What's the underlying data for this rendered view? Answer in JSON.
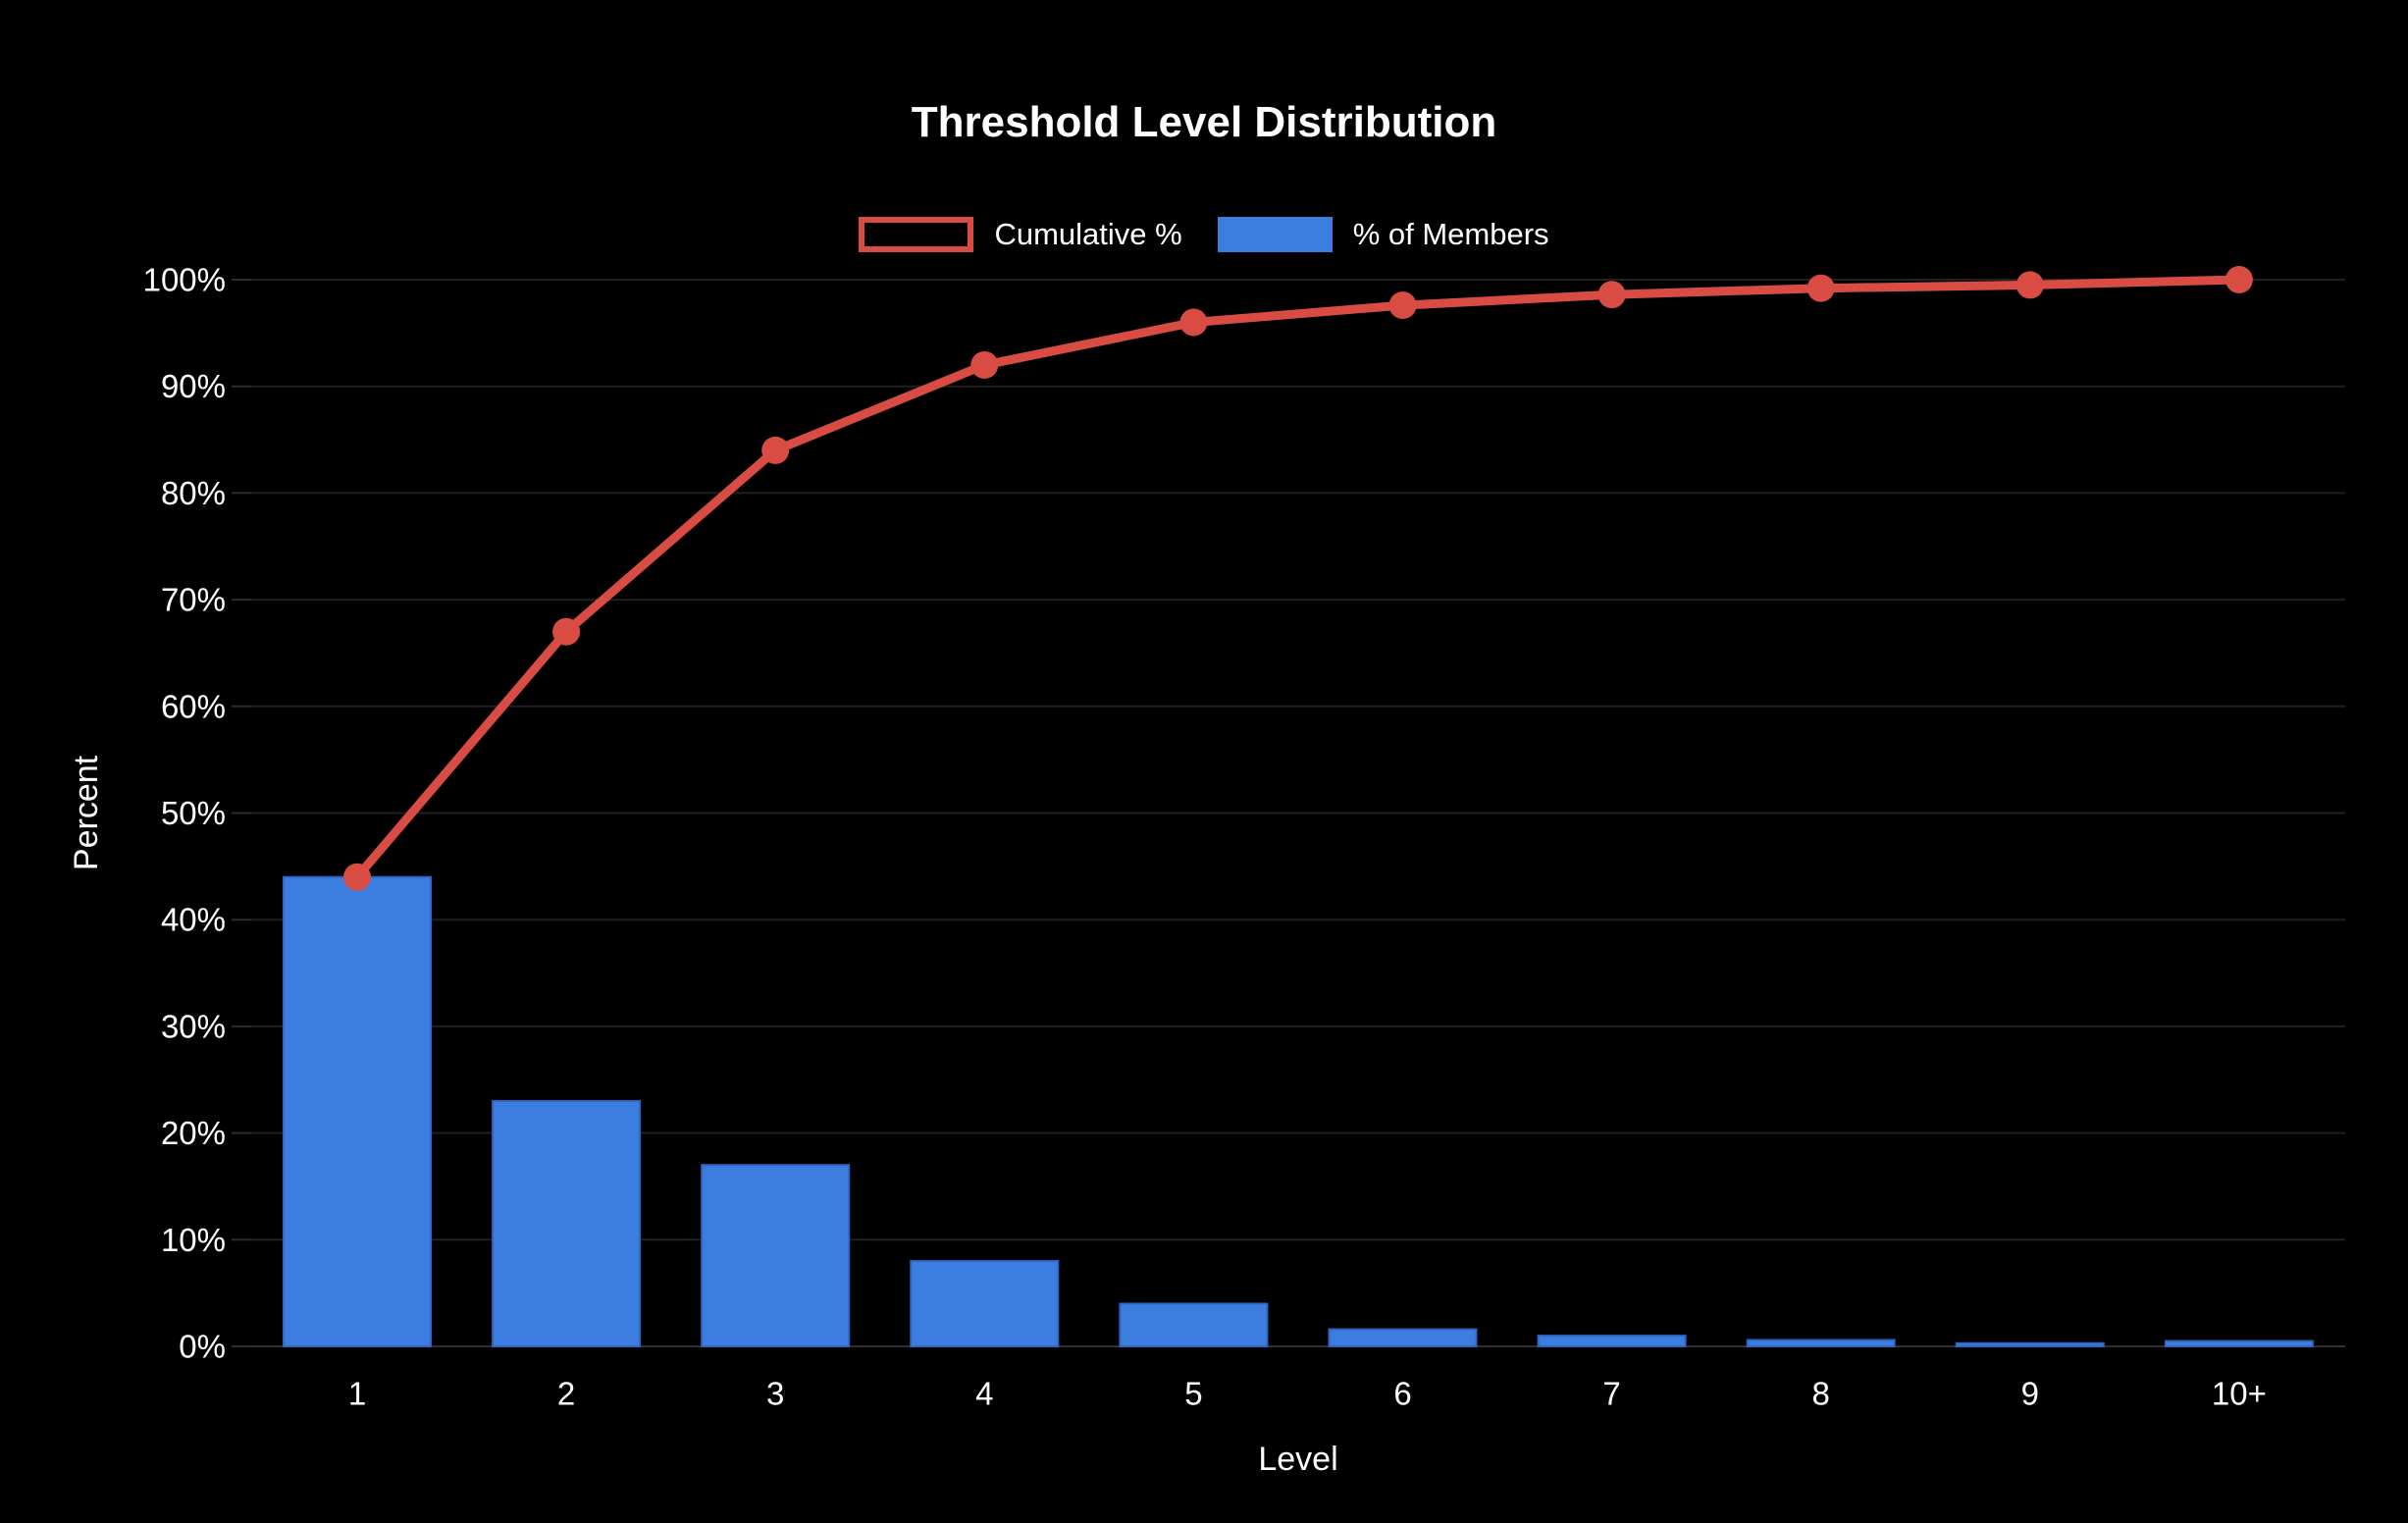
{
  "page": {
    "background": "#000000",
    "text_color": "#ffffff",
    "gridline_color": "#212121",
    "baseline_color": "#303030",
    "tick_color": "#2c2c2c"
  },
  "chart_data": {
    "type": "bar+line (pareto)",
    "title": "Threshold Level Distribution",
    "xlabel": "Level",
    "ylabel": "Percent",
    "categories": [
      "1",
      "2",
      "3",
      "4",
      "5",
      "6",
      "7",
      "8",
      "9",
      "10+"
    ],
    "series": [
      {
        "name": "% of Members",
        "type": "bar",
        "color": "#3c7ee0",
        "values": [
          44,
          23,
          17,
          8,
          4,
          1.6,
          1,
          0.6,
          0.3,
          0.5
        ]
      },
      {
        "name": "Cumulative %",
        "type": "line",
        "color": "#d84c43",
        "values": [
          44,
          67,
          84,
          92,
          96,
          97.6,
          98.6,
          99.2,
          99.5,
          100
        ]
      }
    ],
    "ylim": [
      0,
      100
    ],
    "yticks": [
      0,
      10,
      20,
      30,
      40,
      50,
      60,
      70,
      80,
      90,
      100
    ],
    "ytick_labels": [
      "0%",
      "10%",
      "20%",
      "30%",
      "40%",
      "50%",
      "60%",
      "70%",
      "80%",
      "90%",
      "100%"
    ],
    "grid": "horizontal",
    "legend_position": "top",
    "background": "#000000"
  }
}
